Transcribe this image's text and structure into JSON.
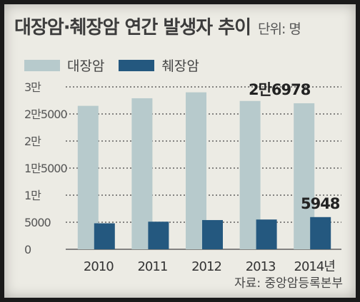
{
  "title": "대장암·췌장암 연간 발생자 추이",
  "unit_label": "단위: 명",
  "source": "자료: 중앙암등록본부",
  "colors": {
    "colon": "#b7cacc",
    "pancreas": "#24587f",
    "gridline": "#444444",
    "text": "#333333"
  },
  "chart_data": {
    "type": "bar",
    "categories": [
      "2010",
      "2011",
      "2012",
      "2013",
      "2014년"
    ],
    "series": [
      {
        "name": "대장암",
        "values": [
          26500,
          27900,
          29000,
          27400,
          26978
        ]
      },
      {
        "name": "췌장암",
        "values": [
          4800,
          5100,
          5400,
          5500,
          5948
        ]
      }
    ],
    "ylim": [
      0,
      30000
    ],
    "yticks": [
      {
        "value": 0,
        "label": "0"
      },
      {
        "value": 5000,
        "label": "5000"
      },
      {
        "value": 10000,
        "label": "1만"
      },
      {
        "value": 15000,
        "label": "1만5000"
      },
      {
        "value": 20000,
        "label": "2만"
      },
      {
        "value": 25000,
        "label": "2만5000"
      },
      {
        "value": 30000,
        "label": "3만"
      }
    ],
    "annotations": [
      {
        "series": 0,
        "index": 4,
        "text": "2만6978"
      },
      {
        "series": 1,
        "index": 4,
        "text": "5948"
      }
    ],
    "grid": true,
    "legend": "top-left"
  }
}
